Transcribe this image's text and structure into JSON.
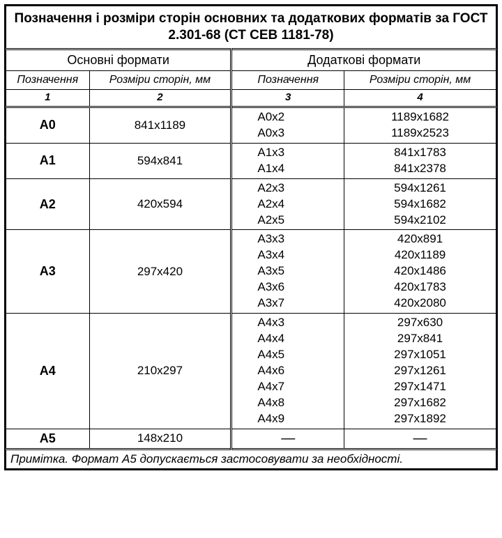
{
  "title": "Позначення і розміри сторін основних  та додаткових форматів за ГОСТ 2.301-68 (СТ СЕВ 1181-78)",
  "groups": {
    "main": "Основні формати",
    "additional": "Додаткові формати"
  },
  "subheaders": {
    "designation": "Позначення",
    "sizes": "Розміри сторін, мм"
  },
  "colnums": {
    "c1": "1",
    "c2": "2",
    "c3": "3",
    "c4": "4"
  },
  "rows": [
    {
      "des": "А0",
      "size": "841х1189",
      "add_des": [
        "А0х2",
        "А0х3"
      ],
      "add_size": [
        "1189х1682",
        "1189х2523"
      ]
    },
    {
      "des": "А1",
      "size": "594х841",
      "add_des": [
        "А1х3",
        "А1х4"
      ],
      "add_size": [
        "841х1783",
        "841х2378"
      ]
    },
    {
      "des": "А2",
      "size": "420х594",
      "add_des": [
        "А2х3",
        "А2х4",
        "А2х5"
      ],
      "add_size": [
        "594х1261",
        "594х1682",
        "594х2102"
      ]
    },
    {
      "des": "А3",
      "size": "297х420",
      "add_des": [
        "А3х3",
        "А3х4",
        "А3х5",
        "А3х6",
        "А3х7"
      ],
      "add_size": [
        "420х891",
        "420х1189",
        "420х1486",
        "420х1783",
        "420х2080"
      ]
    },
    {
      "des": "А4",
      "size": "210х297",
      "add_des": [
        "А4х3",
        "А4х4",
        "А4х5",
        "А4х6",
        "А4х7",
        "А4х8",
        "А4х9"
      ],
      "add_size": [
        "297х630",
        "297х841",
        "297х1051",
        "297х1261",
        "297х1471",
        "297х1682",
        "297х1892"
      ]
    },
    {
      "des": "А5",
      "size": "148х210",
      "add_des": [
        "—"
      ],
      "add_size": [
        "—"
      ],
      "dash": true
    }
  ],
  "note_lead": "Примітка",
  "note_text": ". Формат А5 допускається застосовувати за необхідності.",
  "col_widths_pct": [
    17,
    29,
    23,
    31
  ],
  "colors": {
    "border": "#000000",
    "bg": "#ffffff",
    "text": "#000000"
  }
}
